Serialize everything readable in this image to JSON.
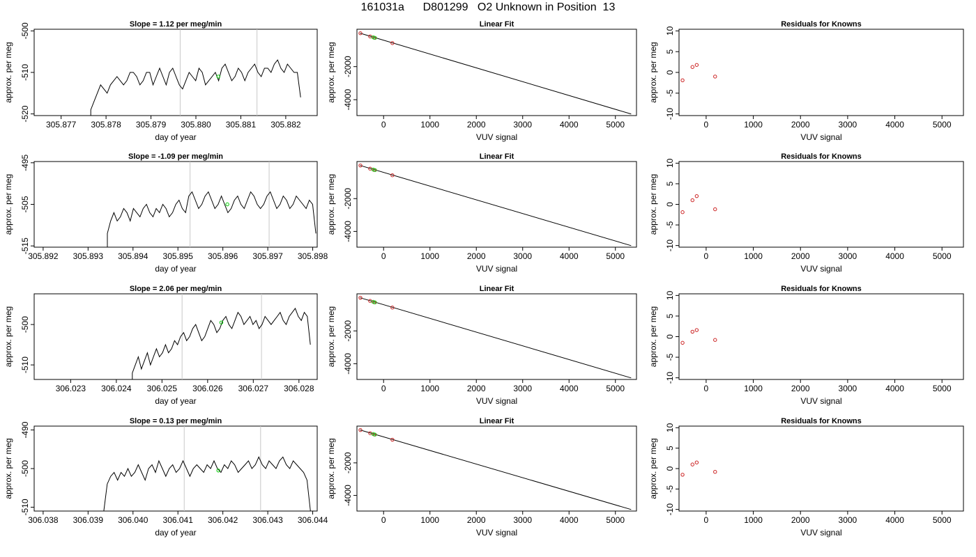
{
  "figure": {
    "title": "161031a      D801299   O2 Unknown in Position  13",
    "panel_titles": {
      "linear": "Linear Fit",
      "residuals": "Residuals for Knowns"
    }
  },
  "chart_data": [
    {
      "type": "line",
      "title": "Slope =  1.12  per meg/min",
      "xlabel": "day of year",
      "ylabel": "approx. per meg",
      "xlim": [
        305.8764,
        305.8827
      ],
      "ylim": [
        -520.4,
        -499.6
      ],
      "xticks": [
        "305.877",
        "305.878",
        "305.879",
        "305.880",
        "305.881",
        "305.882"
      ],
      "yticks": [
        "-500",
        "-510",
        "-520"
      ],
      "vlines": [
        305.87965,
        305.88136
      ],
      "series": [
        {
          "x_start": 305.87766,
          "x_end": 305.88233,
          "values": [
            -519,
            -517,
            -515,
            -513,
            -514,
            -515,
            -513,
            -512,
            -511,
            -512,
            -513,
            -512,
            -510,
            -510,
            -511,
            -513,
            -512,
            -510,
            -510,
            -513,
            -511,
            -509,
            -511,
            -513,
            -510,
            -509,
            -511,
            -513,
            -514,
            -512,
            -510,
            -511,
            -512,
            -509,
            -510,
            -513,
            -512,
            -511,
            -510,
            -512,
            -509,
            -508,
            -510,
            -512,
            -511,
            -509,
            -510,
            -512,
            -510,
            -509,
            -508,
            -510,
            -511,
            -509,
            -509,
            -510,
            -508,
            -507,
            -509,
            -510,
            -508,
            -509,
            -510,
            -510,
            -516
          ]
        }
      ],
      "markers": {
        "x": [
          305.8805
        ],
        "y": [
          -511
        ],
        "color": "#00cc00"
      }
    },
    {
      "type": "scatter",
      "title": "Linear Fit",
      "xlabel": "VUV signal",
      "ylabel": "approx. per meg",
      "xlim": [
        -575,
        5455
      ],
      "ylim": [
        -4960,
        260
      ],
      "xticks": [
        "0",
        "1000",
        "2000",
        "3000",
        "4000",
        "5000"
      ],
      "yticks": [
        "-2000",
        "-4000"
      ],
      "fit_line": {
        "x": [
          -510,
          5340
        ],
        "y": [
          24,
          -4867
        ]
      },
      "known_points": {
        "x": [
          -500,
          -290,
          -200,
          190
        ],
        "y": [
          19,
          -174,
          -256,
          -577
        ]
      },
      "unknown_points": {
        "x": [
          -225,
          -185
        ],
        "y": [
          -227,
          -263
        ]
      }
    },
    {
      "type": "scatter",
      "title": "Residuals for Knowns",
      "xlabel": "VUV signal",
      "ylabel": "approx. per meg",
      "xlim": [
        -575,
        5455
      ],
      "ylim": [
        -10.4,
        10.4
      ],
      "xticks": [
        "0",
        "1000",
        "2000",
        "3000",
        "4000",
        "5000"
      ],
      "yticks": [
        "10",
        "5",
        "0",
        "-5",
        "-10"
      ],
      "points": {
        "x": [
          -500,
          -290,
          -200,
          190
        ],
        "y": [
          -1.9,
          1.3,
          1.8,
          -1.0
        ]
      }
    },
    {
      "type": "line",
      "title": "Slope =  -1.09  per meg/min",
      "xlabel": "day of year",
      "ylabel": "approx. per meg",
      "xlim": [
        305.8918,
        305.8981
      ],
      "ylim": [
        -515.3,
        -494.7
      ],
      "xticks": [
        "305.892",
        "305.893",
        "305.894",
        "305.895",
        "305.896",
        "305.897",
        "305.898"
      ],
      "yticks": [
        "-495",
        "-505",
        "-515"
      ],
      "vlines": [
        305.89527,
        305.89703
      ],
      "series": [
        {
          "x_start": 305.89343,
          "x_end": 305.89807,
          "values": [
            -512,
            -509,
            -507,
            -509,
            -508,
            -506,
            -507,
            -509,
            -506,
            -507,
            -508,
            -506,
            -505,
            -507,
            -508,
            -506,
            -507,
            -505,
            -506,
            -508,
            -507,
            -505,
            -504,
            -506,
            -507,
            -503,
            -502,
            -504,
            -506,
            -505,
            -503,
            -502,
            -504,
            -506,
            -505,
            -503,
            -505,
            -507,
            -506,
            -504,
            -503,
            -505,
            -506,
            -504,
            -502,
            -503,
            -505,
            -506,
            -505,
            -503,
            -502,
            -504,
            -506,
            -505,
            -503,
            -504,
            -506,
            -505,
            -503,
            -504,
            -505,
            -506,
            -504,
            -505,
            -512
          ]
        }
      ],
      "markers": {
        "x": [
          305.8961
        ],
        "y": [
          -505
        ],
        "color": "#00cc00"
      }
    },
    {
      "type": "scatter",
      "title": "Linear Fit",
      "xlabel": "VUV signal",
      "ylabel": "approx. per meg",
      "xlim": [
        -575,
        5455
      ],
      "ylim": [
        -4960,
        260
      ],
      "xticks": [
        "0",
        "1000",
        "2000",
        "3000",
        "4000",
        "5000"
      ],
      "yticks": [
        "-2000",
        "-4000"
      ],
      "fit_line": {
        "x": [
          -510,
          5340
        ],
        "y": [
          24,
          -4867
        ]
      },
      "known_points": {
        "x": [
          -500,
          -290,
          -200,
          190
        ],
        "y": [
          19,
          -174,
          -256,
          -577
        ]
      },
      "unknown_points": {
        "x": [
          -225,
          -185
        ],
        "y": [
          -227,
          -263
        ]
      }
    },
    {
      "type": "scatter",
      "title": "Residuals for Knowns",
      "xlabel": "VUV signal",
      "ylabel": "approx. per meg",
      "xlim": [
        -575,
        5455
      ],
      "ylim": [
        -10.4,
        10.4
      ],
      "xticks": [
        "0",
        "1000",
        "2000",
        "3000",
        "4000",
        "5000"
      ],
      "yticks": [
        "10",
        "5",
        "0",
        "-5",
        "-10"
      ],
      "points": {
        "x": [
          -500,
          -290,
          -200,
          190
        ],
        "y": [
          -1.9,
          1.0,
          2.0,
          -1.2
        ]
      }
    },
    {
      "type": "line",
      "title": "Slope =  2.06  per meg/min",
      "xlabel": "day of year",
      "ylabel": "approx. per meg",
      "xlim": [
        306.0222,
        306.0284
      ],
      "ylim": [
        -513.6,
        -492.4
      ],
      "xticks": [
        "306.023",
        "306.024",
        "306.025",
        "306.026",
        "306.027",
        "306.028"
      ],
      "yticks": [
        "-500",
        "-510"
      ],
      "vlines": [
        306.02544,
        306.02718
      ],
      "series": [
        {
          "x_start": 306.02435,
          "x_end": 306.02825,
          "values": [
            -512,
            -510,
            -508,
            -511,
            -509,
            -507,
            -510,
            -508,
            -506,
            -508,
            -507,
            -505,
            -507,
            -506,
            -504,
            -505,
            -503,
            -502,
            -504,
            -503,
            -501,
            -500,
            -502,
            -504,
            -503,
            -501,
            -499,
            -500,
            -502,
            -501,
            -499,
            -498,
            -500,
            -501,
            -499,
            -497,
            -498,
            -500,
            -499,
            -498,
            -500,
            -499,
            -501,
            -500,
            -498,
            -499,
            -500,
            -499,
            -498,
            -497,
            -499,
            -500,
            -498,
            -497,
            -496,
            -498,
            -499,
            -497,
            -498,
            -505
          ]
        }
      ],
      "markers": {
        "x": [
          306.0263
        ],
        "y": [
          -499.5
        ],
        "color": "#00cc00"
      }
    },
    {
      "type": "scatter",
      "title": "Linear Fit",
      "xlabel": "VUV signal",
      "ylabel": "approx. per meg",
      "xlim": [
        -575,
        5455
      ],
      "ylim": [
        -4960,
        260
      ],
      "xticks": [
        "0",
        "1000",
        "2000",
        "3000",
        "4000",
        "5000"
      ],
      "yticks": [
        "-2000",
        "-4000"
      ],
      "fit_line": {
        "x": [
          -510,
          5340
        ],
        "y": [
          24,
          -4867
        ]
      },
      "known_points": {
        "x": [
          -500,
          -290,
          -200,
          190
        ],
        "y": [
          19,
          -174,
          -256,
          -577
        ]
      },
      "unknown_points": {
        "x": [
          -225,
          -185
        ],
        "y": [
          -227,
          -263
        ]
      }
    },
    {
      "type": "scatter",
      "title": "Residuals for Knowns",
      "xlabel": "VUV signal",
      "ylabel": "approx. per meg",
      "xlim": [
        -575,
        5455
      ],
      "ylim": [
        -10.4,
        10.4
      ],
      "xticks": [
        "0",
        "1000",
        "2000",
        "3000",
        "4000",
        "5000"
      ],
      "yticks": [
        "10",
        "5",
        "0",
        "-5",
        "-10"
      ],
      "points": {
        "x": [
          -500,
          -290,
          -200,
          190
        ],
        "y": [
          -1.5,
          1.2,
          1.6,
          -0.8
        ]
      }
    },
    {
      "type": "line",
      "title": "Slope =  0.13  per meg/min",
      "xlabel": "day of year",
      "ylabel": "approx. per meg",
      "xlim": [
        306.0378,
        306.0441
      ],
      "ylim": [
        -511,
        -489
      ],
      "xticks": [
        "306.038",
        "306.039",
        "306.040",
        "306.041",
        "306.042",
        "306.043",
        "306.044"
      ],
      "yticks": [
        "-490",
        "-500",
        "-510"
      ],
      "vlines": [
        306.04114,
        306.04284
      ],
      "series": [
        {
          "x_start": 306.03935,
          "x_end": 306.04395,
          "values": [
            -511,
            -504,
            -502,
            -501,
            -503,
            -501,
            -502,
            -500,
            -502,
            -501,
            -499,
            -501,
            -503,
            -500,
            -499,
            -501,
            -498,
            -500,
            -502,
            -500,
            -499,
            -501,
            -500,
            -498,
            -500,
            -502,
            -500,
            -499,
            -500,
            -501,
            -499,
            -500,
            -498,
            -500,
            -501,
            -499,
            -500,
            -498,
            -499,
            -501,
            -500,
            -499,
            -498,
            -500,
            -499,
            -497,
            -499,
            -500,
            -498,
            -499,
            -500,
            -498,
            -497,
            -499,
            -500,
            -498,
            -499,
            -500,
            -501,
            -503,
            -511
          ]
        }
      ],
      "markers": {
        "x": [
          306.0419
        ],
        "y": [
          -500.5
        ],
        "color": "#00cc00"
      }
    },
    {
      "type": "scatter",
      "title": "Linear Fit",
      "xlabel": "VUV signal",
      "ylabel": "approx. per meg",
      "xlim": [
        -575,
        5455
      ],
      "ylim": [
        -4960,
        260
      ],
      "xticks": [
        "0",
        "1000",
        "2000",
        "3000",
        "4000",
        "5000"
      ],
      "yticks": [
        "-2000",
        "-4000"
      ],
      "fit_line": {
        "x": [
          -510,
          5340
        ],
        "y": [
          24,
          -4867
        ]
      },
      "known_points": {
        "x": [
          -500,
          -290,
          -200,
          190
        ],
        "y": [
          19,
          -174,
          -256,
          -577
        ]
      },
      "unknown_points": {
        "x": [
          -225,
          -185
        ],
        "y": [
          -227,
          -263
        ]
      }
    },
    {
      "type": "scatter",
      "title": "Residuals for Knowns",
      "xlabel": "VUV signal",
      "ylabel": "approx. per meg",
      "xlim": [
        -575,
        5455
      ],
      "ylim": [
        -10.4,
        10.4
      ],
      "xticks": [
        "0",
        "1000",
        "2000",
        "3000",
        "4000",
        "5000"
      ],
      "yticks": [
        "10",
        "5",
        "0",
        "-5",
        "-10"
      ],
      "points": {
        "x": [
          -500,
          -290,
          -200,
          190
        ],
        "y": [
          -1.5,
          1.0,
          1.5,
          -0.8
        ]
      }
    }
  ]
}
